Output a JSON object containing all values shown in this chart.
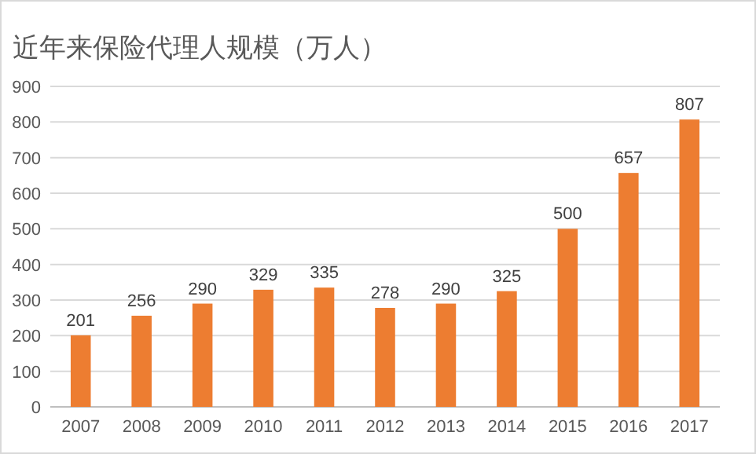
{
  "chart_data": {
    "type": "bar",
    "title": "近年来保险代理人规模（万人）",
    "categories": [
      "2007",
      "2008",
      "2009",
      "2010",
      "2011",
      "2012",
      "2013",
      "2014",
      "2015",
      "2016",
      "2017"
    ],
    "values": [
      201,
      256,
      290,
      329,
      335,
      278,
      290,
      325,
      500,
      657,
      807
    ],
    "color": "#ed7d31",
    "ylim": [
      0,
      900
    ],
    "yticks": [
      0,
      100,
      200,
      300,
      400,
      500,
      600,
      700,
      800,
      900
    ],
    "grid": "y",
    "data_labels": true
  }
}
